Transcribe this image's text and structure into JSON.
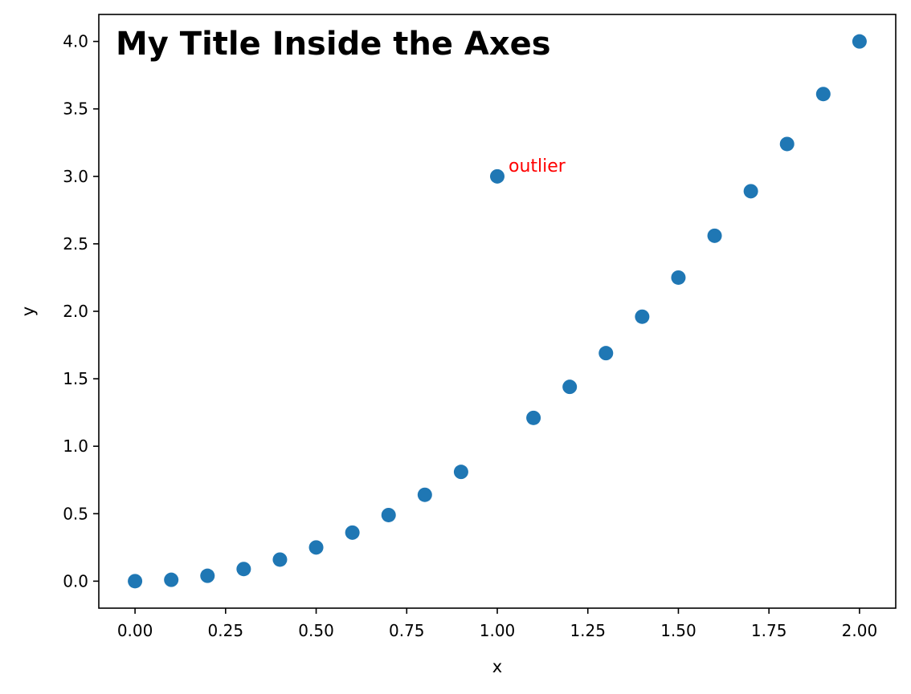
{
  "chart_data": {
    "type": "scatter",
    "title": "My Title Inside the Axes",
    "xlabel": "x",
    "ylabel": "y",
    "xlim": [
      -0.1,
      2.1
    ],
    "ylim": [
      -0.2,
      4.2
    ],
    "xticks": [
      0.0,
      0.25,
      0.5,
      0.75,
      1.0,
      1.25,
      1.5,
      1.75,
      2.0
    ],
    "xtick_labels": [
      "0.00",
      "0.25",
      "0.50",
      "0.75",
      "1.00",
      "1.25",
      "1.50",
      "1.75",
      "2.00"
    ],
    "yticks": [
      0.0,
      0.5,
      1.0,
      1.5,
      2.0,
      2.5,
      3.0,
      3.5,
      4.0
    ],
    "ytick_labels": [
      "0.0",
      "0.5",
      "1.0",
      "1.5",
      "2.0",
      "2.5",
      "3.0",
      "3.5",
      "4.0"
    ],
    "grid": false,
    "marker_color": "#1f77b4",
    "series": [
      {
        "x": [
          0.0,
          0.1,
          0.2,
          0.3,
          0.4,
          0.5,
          0.6,
          0.7,
          0.8,
          0.9,
          1.0,
          1.1,
          1.2,
          1.3,
          1.4,
          1.5,
          1.6,
          1.7,
          1.8,
          1.9,
          2.0
        ],
        "y": [
          0.0,
          0.01,
          0.04,
          0.09,
          0.16,
          0.25,
          0.36,
          0.49,
          0.64,
          0.81,
          3.0,
          1.21,
          1.44,
          1.69,
          1.96,
          2.25,
          2.56,
          2.89,
          3.24,
          3.61,
          4.0
        ]
      }
    ],
    "annotations": [
      {
        "text": "outlier",
        "x": 1.0,
        "y": 3.0,
        "color": "#ff0000"
      }
    ]
  }
}
